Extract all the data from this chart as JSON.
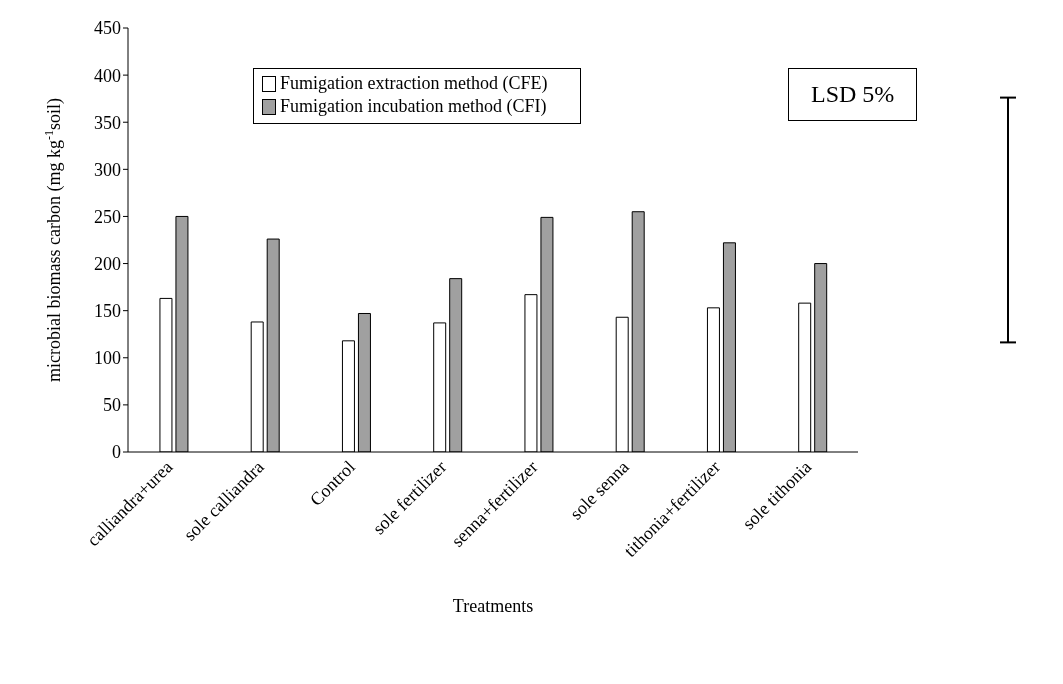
{
  "chart_data": {
    "type": "bar",
    "xlabel": "Treatments",
    "ylabel": "microbial biomass carbon (mg kg$^{-1}$soil)",
    "categories": [
      "calliandra+urea",
      "sole calliandra",
      "Control",
      "sole fertilizer",
      "senna+fertilizer",
      "sole senna",
      "tithonia+fertilizer",
      "sole tithonia"
    ],
    "series": [
      {
        "name": "Fumigation extraction method (CFE)",
        "color": "#ffffff",
        "values": [
          163,
          138,
          118,
          137,
          167,
          143,
          153,
          158
        ]
      },
      {
        "name": "Fumigation incubation method (CFI)",
        "color": "#a0a0a0",
        "values": [
          250,
          226,
          147,
          184,
          249,
          255,
          222,
          200
        ]
      }
    ],
    "ylim": [
      0,
      450
    ],
    "yticks": [
      0,
      50,
      100,
      150,
      200,
      250,
      300,
      350,
      400,
      450
    ],
    "annotations": [
      "LSD 5%"
    ],
    "legend": "top left"
  }
}
